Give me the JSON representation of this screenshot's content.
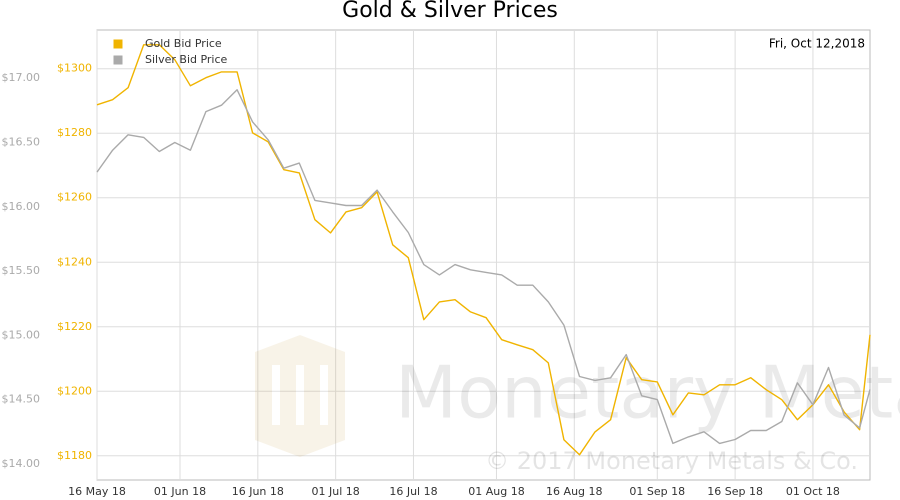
{
  "chart_data": {
    "type": "line",
    "title": "Gold & Silver Prices",
    "date_label": "Fri, Oct 12,2018",
    "watermark": "Monetary Metals",
    "copyright": "© 2017 Monetary Metals & Co.",
    "x": [
      "2018-05-16",
      "2018-05-19",
      "2018-05-22",
      "2018-05-25",
      "2018-05-28",
      "2018-05-31",
      "2018-06-03",
      "2018-06-06",
      "2018-06-09",
      "2018-06-12",
      "2018-06-15",
      "2018-06-18",
      "2018-06-21",
      "2018-06-24",
      "2018-06-27",
      "2018-06-30",
      "2018-07-03",
      "2018-07-06",
      "2018-07-09",
      "2018-07-12",
      "2018-07-15",
      "2018-07-18",
      "2018-07-21",
      "2018-07-24",
      "2018-07-27",
      "2018-07-30",
      "2018-08-02",
      "2018-08-05",
      "2018-08-08",
      "2018-08-11",
      "2018-08-14",
      "2018-08-17",
      "2018-08-20",
      "2018-08-23",
      "2018-08-26",
      "2018-08-29",
      "2018-09-01",
      "2018-09-04",
      "2018-09-07",
      "2018-09-10",
      "2018-09-13",
      "2018-09-16",
      "2018-09-19",
      "2018-09-22",
      "2018-09-25",
      "2018-09-28",
      "2018-10-01",
      "2018-10-04",
      "2018-10-07",
      "2018-10-10",
      "2018-10-12"
    ],
    "xlim": [
      "2018-05-16",
      "2018-10-12"
    ],
    "xticks": [
      {
        "value": "2018-05-16",
        "label": "16 May 18"
      },
      {
        "value": "2018-06-01",
        "label": "01 Jun 18"
      },
      {
        "value": "2018-06-16",
        "label": "16 Jun 18"
      },
      {
        "value": "2018-07-01",
        "label": "01 Jul 18"
      },
      {
        "value": "2018-07-16",
        "label": "16 Jul 18"
      },
      {
        "value": "2018-08-01",
        "label": "01 Aug 18"
      },
      {
        "value": "2018-08-16",
        "label": "16 Aug 18"
      },
      {
        "value": "2018-09-01",
        "label": "01 Sep 18"
      },
      {
        "value": "2018-09-16",
        "label": "16 Sep 18"
      },
      {
        "value": "2018-10-01",
        "label": "01 Oct 18"
      }
    ],
    "ylim": [
      1172.5,
      1312
    ],
    "yticks": [
      {
        "value": 1180,
        "label": "$1180"
      },
      {
        "value": 1200,
        "label": "$1200"
      },
      {
        "value": 1220,
        "label": "$1220"
      },
      {
        "value": 1240,
        "label": "$1240"
      },
      {
        "value": 1260,
        "label": "$1260"
      },
      {
        "value": 1280,
        "label": "$1280"
      },
      {
        "value": 1300,
        "label": "$1300"
      }
    ],
    "y2lim": [
      13.875,
      17.375
    ],
    "y2ticks": [
      {
        "value": 14,
        "label": "$14.00"
      },
      {
        "value": 14.5,
        "label": "$14.50"
      },
      {
        "value": 15,
        "label": "$15.00"
      },
      {
        "value": 15.5,
        "label": "$15.50"
      },
      {
        "value": 16,
        "label": "$16.00"
      },
      {
        "value": 16.5,
        "label": "$16.50"
      },
      {
        "value": 17,
        "label": "$17.00"
      }
    ],
    "grid": true,
    "legend": "upper left",
    "series": [
      {
        "name": "Gold Bid Price",
        "color": "#f0b400",
        "values": [
          1288.8,
          1290.4,
          1294.1,
          1307.4,
          1307.4,
          1302.8,
          1294.7,
          1297.2,
          1299.0,
          1299.0,
          1280.1,
          1277.3,
          1268.7,
          1267.7,
          1253.2,
          1249.1,
          1255.6,
          1256.9,
          1261.8,
          1245.4,
          1241.4,
          1222.2,
          1227.7,
          1228.4,
          1224.6,
          1222.8,
          1216.0,
          1214.4,
          1212.9,
          1208.8,
          1185.0,
          1180.3,
          1187.4,
          1191.2,
          1210.4,
          1203.6,
          1202.9,
          1192.7,
          1199.5,
          1198.9,
          1202.0,
          1202.0,
          1204.2,
          1200.5,
          1197.4,
          1191.2,
          1195.8,
          1202.0,
          1193.6,
          1188.1,
          1217.5
        ]
      },
      {
        "name": "Silver Bid Price",
        "color": "#aaaaaa",
        "axis": "y2",
        "values": [
          16.27,
          16.44,
          16.56,
          16.54,
          16.43,
          16.5,
          16.44,
          16.74,
          16.79,
          16.91,
          16.66,
          16.52,
          16.3,
          16.34,
          16.05,
          16.03,
          16.01,
          16.01,
          16.13,
          15.96,
          15.8,
          15.55,
          15.47,
          15.55,
          15.51,
          15.49,
          15.47,
          15.39,
          15.39,
          15.26,
          15.08,
          14.68,
          14.65,
          14.67,
          14.85,
          14.53,
          14.5,
          14.16,
          14.21,
          14.25,
          14.16,
          14.19,
          14.26,
          14.26,
          14.33,
          14.63,
          14.46,
          14.75,
          14.38,
          14.28,
          14.58
        ]
      }
    ]
  }
}
